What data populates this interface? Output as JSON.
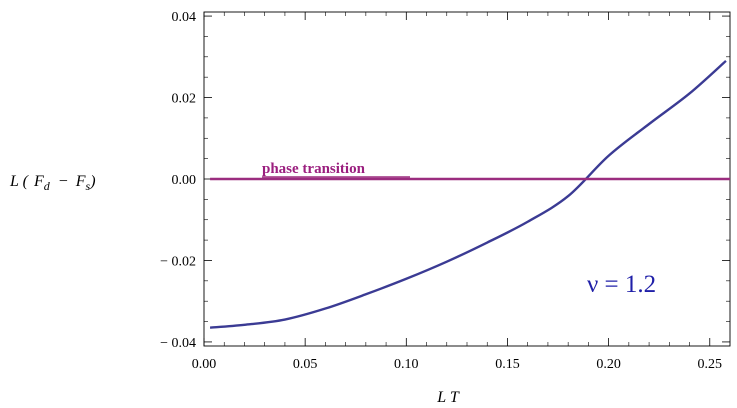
{
  "chart_data": {
    "type": "line",
    "title": "",
    "xlabel": "L  T",
    "ylabel_parts": {
      "lead": "L (",
      "a": "F",
      "a_sub": "d",
      "minus": "−",
      "b": "F",
      "b_sub": "s",
      "close": ")"
    },
    "xlim": [
      0.0,
      0.26
    ],
    "ylim": [
      -0.041,
      0.041
    ],
    "x_ticks": [
      0.0,
      0.05,
      0.1,
      0.15,
      0.2,
      0.25
    ],
    "x_tick_labels": [
      "0.00",
      "0.05",
      "0.10",
      "0.15",
      "0.20",
      "0.25"
    ],
    "y_ticks": [
      -0.04,
      -0.02,
      0.0,
      0.02,
      0.04
    ],
    "y_tick_labels": [
      "− 0.04",
      "− 0.02",
      "0.00",
      "0.02",
      "0.04"
    ],
    "grid": false,
    "series": [
      {
        "color": "#3b3b94",
        "x": [
          0.003,
          0.02,
          0.04,
          0.06,
          0.08,
          0.1,
          0.12,
          0.14,
          0.16,
          0.18,
          0.2,
          0.22,
          0.24,
          0.258
        ],
        "y": [
          -0.0365,
          -0.0358,
          -0.0345,
          -0.0318,
          -0.0283,
          -0.0245,
          -0.0203,
          -0.0156,
          -0.0105,
          -0.0042,
          0.0057,
          0.0135,
          0.021,
          0.029
        ]
      },
      {
        "color": "#9b2d7f",
        "x": [
          0.003,
          0.26
        ],
        "y": [
          0.0,
          0.0
        ]
      }
    ],
    "annotations": [
      {
        "text": "phase  transition",
        "color": "#9b1f7f"
      },
      {
        "text": "ν  = 1.2",
        "color": "#1f1fa8"
      }
    ]
  }
}
